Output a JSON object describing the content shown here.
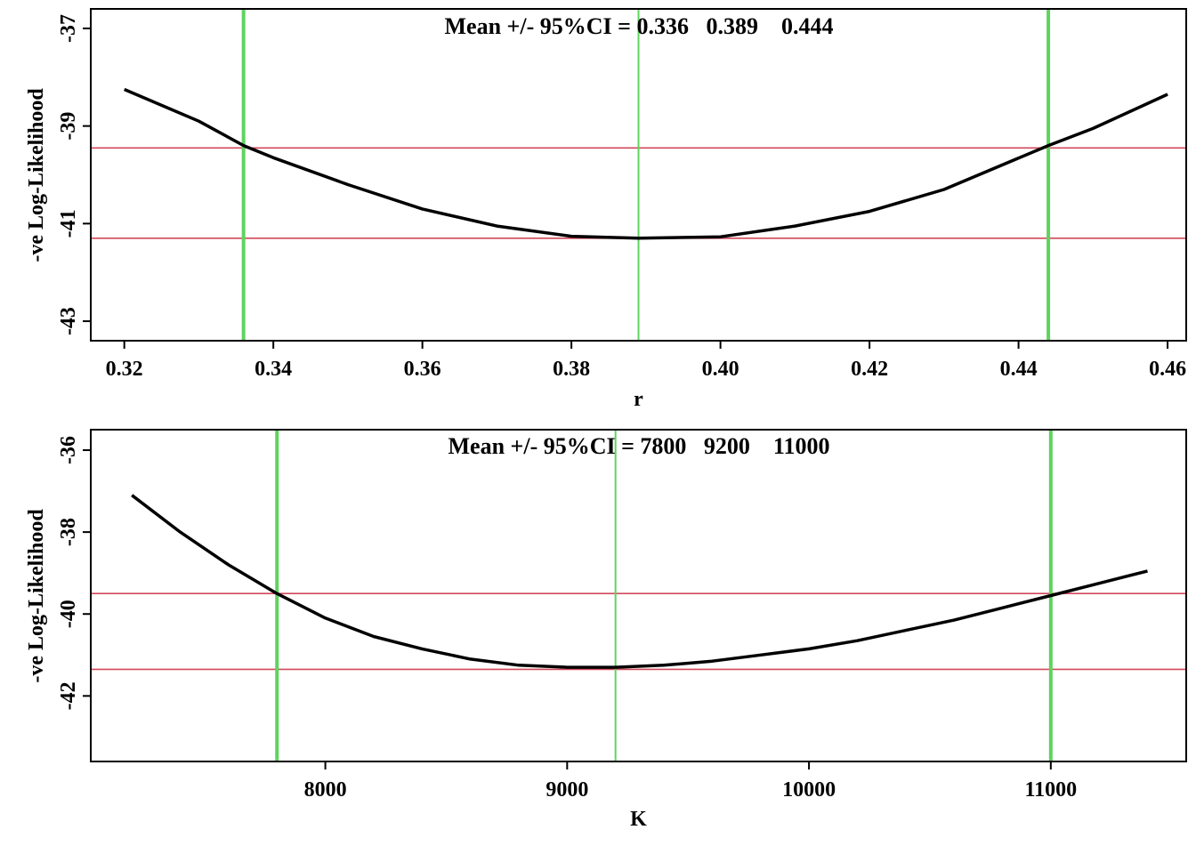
{
  "chart_data": [
    {
      "type": "line",
      "xlabel": "r",
      "ylabel": "-ve Log-Likelihood",
      "annotation": "Mean +/- 95%CI = 0.336   0.389    0.444",
      "xlim": [
        0.3155,
        0.4625
      ],
      "ylim": [
        -43.4,
        -36.6
      ],
      "xticks": [
        0.32,
        0.34,
        0.36,
        0.38,
        0.4,
        0.42,
        0.44,
        0.46
      ],
      "xtick_labels": [
        "0.32",
        "0.34",
        "0.36",
        "0.38",
        "0.40",
        "0.42",
        "0.44",
        "0.46"
      ],
      "yticks": [
        -37,
        -39,
        -41,
        -43
      ],
      "ytick_labels": [
        "-37",
        "-39",
        "-41",
        "-43"
      ],
      "series": [
        {
          "color": "#000000",
          "x": [
            0.32,
            0.33,
            0.336,
            0.34,
            0.35,
            0.36,
            0.37,
            0.38,
            0.389,
            0.4,
            0.41,
            0.42,
            0.43,
            0.444,
            0.45,
            0.46
          ],
          "y": [
            -38.25,
            -38.9,
            -39.4,
            -39.65,
            -40.2,
            -40.7,
            -41.05,
            -41.26,
            -41.3,
            -41.27,
            -41.05,
            -40.75,
            -40.3,
            -39.4,
            -39.05,
            -38.35
          ]
        }
      ],
      "vlines": [
        {
          "x": 0.336,
          "color": "#5fd35f",
          "style": "thick"
        },
        {
          "x": 0.389,
          "color": "#5fd35f",
          "style": "thin"
        },
        {
          "x": 0.444,
          "color": "#5fd35f",
          "style": "thick"
        }
      ],
      "hlines": [
        {
          "y": -39.45,
          "color": "#d1495b"
        },
        {
          "y": -41.3,
          "color": "#d1495b"
        }
      ]
    },
    {
      "type": "line",
      "xlabel": "K",
      "ylabel": "-ve Log-Likelihood",
      "annotation": "Mean +/- 95%CI = 7800   9200    11000",
      "xlim": [
        7030,
        11560
      ],
      "ylim": [
        -43.6,
        -35.5
      ],
      "xticks": [
        8000,
        9000,
        10000,
        11000
      ],
      "xtick_labels": [
        "8000",
        "9000",
        "10000",
        "11000"
      ],
      "yticks": [
        -36,
        -38,
        -40,
        -42
      ],
      "ytick_labels": [
        "-36",
        "-38",
        "-40",
        "-42"
      ],
      "series": [
        {
          "color": "#000000",
          "x": [
            7200,
            7400,
            7600,
            7800,
            8000,
            8200,
            8400,
            8600,
            8800,
            9000,
            9200,
            9400,
            9600,
            9800,
            10000,
            10200,
            10400,
            10600,
            10800,
            11000,
            11200,
            11400
          ],
          "y": [
            -37.1,
            -38.0,
            -38.8,
            -39.5,
            -40.1,
            -40.55,
            -40.85,
            -41.1,
            -41.25,
            -41.3,
            -41.3,
            -41.25,
            -41.15,
            -41.0,
            -40.85,
            -40.65,
            -40.4,
            -40.15,
            -39.85,
            -39.55,
            -39.25,
            -38.95
          ]
        }
      ],
      "vlines": [
        {
          "x": 7800,
          "color": "#5fd35f",
          "style": "thick"
        },
        {
          "x": 9200,
          "color": "#5fd35f",
          "style": "thin"
        },
        {
          "x": 11000,
          "color": "#5fd35f",
          "style": "thick"
        }
      ],
      "hlines": [
        {
          "y": -39.5,
          "color": "#d1495b"
        },
        {
          "y": -41.35,
          "color": "#d1495b"
        }
      ]
    }
  ]
}
